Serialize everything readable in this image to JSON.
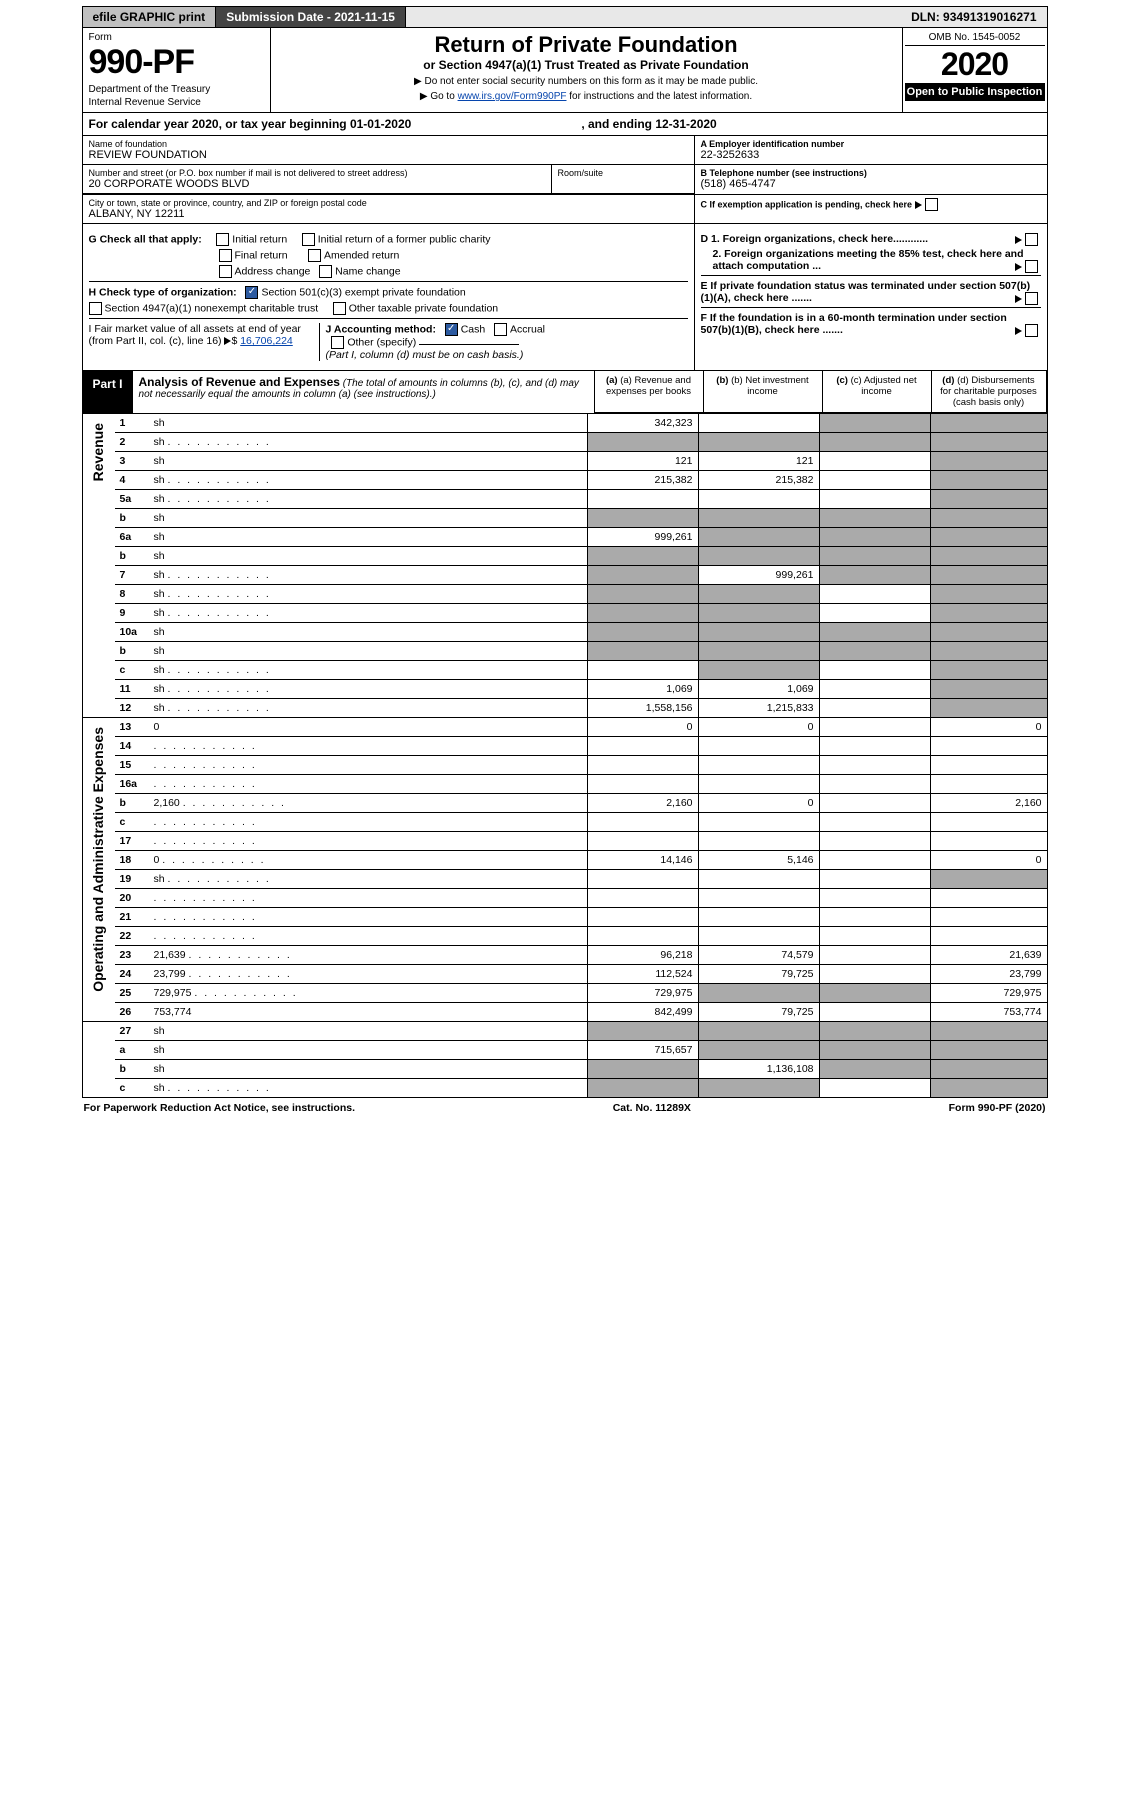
{
  "topbar": {
    "efile": "efile GRAPHIC print",
    "sub_label": "Submission Date - 2021-11-15",
    "dln": "DLN: 93491319016271"
  },
  "header": {
    "form": "Form",
    "number": "990-PF",
    "dept": "Department of the Treasury",
    "irs": "Internal Revenue Service",
    "title": "Return of Private Foundation",
    "subtitle": "or Section 4947(a)(1) Trust Treated as Private Foundation",
    "note1": "▶ Do not enter social security numbers on this form as it may be made public.",
    "note2_pre": "▶ Go to ",
    "note2_link": "www.irs.gov/Form990PF",
    "note2_post": " for instructions and the latest information.",
    "omb": "OMB No. 1545-0052",
    "year": "2020",
    "open": "Open to Public Inspection"
  },
  "calendar": {
    "line": "For calendar year 2020, or tax year beginning 01-01-2020",
    "ending": ", and ending 12-31-2020"
  },
  "info": {
    "name_lbl": "Name of foundation",
    "name": "REVIEW FOUNDATION",
    "addr_lbl": "Number and street (or P.O. box number if mail is not delivered to street address)",
    "addr": "20 CORPORATE WOODS BLVD",
    "room_lbl": "Room/suite",
    "city_lbl": "City or town, state or province, country, and ZIP or foreign postal code",
    "city": "ALBANY, NY  12211",
    "ein_lbl": "A Employer identification number",
    "ein": "22-3252633",
    "tel_lbl": "B Telephone number (see instructions)",
    "tel": "(518) 465-4747",
    "c_lbl": "C If exemption application is pending, check here"
  },
  "sectionG": {
    "title": "G Check all that apply:",
    "opts": [
      "Initial return",
      "Initial return of a former public charity",
      "Final return",
      "Amended return",
      "Address change",
      "Name change"
    ]
  },
  "sectionH": {
    "title": "H Check type of organization:",
    "o1": "Section 501(c)(3) exempt private foundation",
    "o2": "Section 4947(a)(1) nonexempt charitable trust",
    "o3": "Other taxable private foundation"
  },
  "sectionI": {
    "title": "I Fair market value of all assets at end of year (from Part II, col. (c), line 16)",
    "val": "16,706,224"
  },
  "sectionJ": {
    "title": "J Accounting method:",
    "o1": "Cash",
    "o2": "Accrual",
    "o3": "Other (specify)",
    "note": "(Part I, column (d) must be on cash basis.)"
  },
  "sectionD": {
    "d1": "D 1. Foreign organizations, check here............",
    "d2": "2. Foreign organizations meeting the 85% test, check here and attach computation ..."
  },
  "sectionE": {
    "txt": "E  If private foundation status was terminated under section 507(b)(1)(A), check here ......."
  },
  "sectionF": {
    "txt": "F  If the foundation is in a 60-month termination under section 507(b)(1)(B), check here ......."
  },
  "part1": {
    "label": "Part I",
    "title": "Analysis of Revenue and Expenses",
    "note": "(The total of amounts in columns (b), (c), and (d) may not necessarily equal the amounts in column (a) (see instructions).)",
    "col_a": "(a) Revenue and expenses per books",
    "col_b": "(b) Net investment income",
    "col_c": "(c) Adjusted net income",
    "col_d": "(d) Disbursements for charitable purposes (cash basis only)"
  },
  "sections": {
    "rev": "Revenue",
    "exp": "Operating and Administrative Expenses"
  },
  "rows": [
    {
      "n": "1",
      "d": "sh",
      "a": "342,323",
      "b": "",
      "c": "sh"
    },
    {
      "n": "2",
      "d": "sh",
      "a": "sh",
      "b": "sh",
      "c": "sh",
      "dots": true
    },
    {
      "n": "3",
      "d": "sh",
      "a": "121",
      "b": "121",
      "c": ""
    },
    {
      "n": "4",
      "d": "sh",
      "a": "215,382",
      "b": "215,382",
      "c": "",
      "dots": true
    },
    {
      "n": "5a",
      "d": "sh",
      "a": "",
      "b": "",
      "c": "",
      "dots": true
    },
    {
      "n": "b",
      "d": "sh",
      "a": "sh",
      "b": "sh",
      "c": "sh"
    },
    {
      "n": "6a",
      "d": "sh",
      "a": "999,261",
      "b": "sh",
      "c": "sh"
    },
    {
      "n": "b",
      "d": "sh",
      "a": "sh",
      "b": "sh",
      "c": "sh"
    },
    {
      "n": "7",
      "d": "sh",
      "a": "sh",
      "b": "999,261",
      "c": "sh",
      "dots": true
    },
    {
      "n": "8",
      "d": "sh",
      "a": "sh",
      "b": "sh",
      "c": "",
      "dots": true
    },
    {
      "n": "9",
      "d": "sh",
      "a": "sh",
      "b": "sh",
      "c": "",
      "dots": true
    },
    {
      "n": "10a",
      "d": "sh",
      "a": "sh",
      "b": "sh",
      "c": "sh"
    },
    {
      "n": "b",
      "d": "sh",
      "a": "sh",
      "b": "sh",
      "c": "sh"
    },
    {
      "n": "c",
      "d": "sh",
      "a": "",
      "b": "sh",
      "c": "",
      "dots": true
    },
    {
      "n": "11",
      "d": "sh",
      "a": "1,069",
      "b": "1,069",
      "c": "",
      "dots": true
    },
    {
      "n": "12",
      "d": "sh",
      "a": "1,558,156",
      "b": "1,215,833",
      "c": "",
      "dots": true,
      "last_rev": true
    },
    {
      "n": "13",
      "d": "0",
      "a": "0",
      "b": "0",
      "c": ""
    },
    {
      "n": "14",
      "d": "",
      "a": "",
      "b": "",
      "c": "",
      "dots": true
    },
    {
      "n": "15",
      "d": "",
      "a": "",
      "b": "",
      "c": "",
      "dots": true
    },
    {
      "n": "16a",
      "d": "",
      "a": "",
      "b": "",
      "c": "",
      "dots": true
    },
    {
      "n": "b",
      "d": "2,160",
      "a": "2,160",
      "b": "0",
      "c": "",
      "dots": true
    },
    {
      "n": "c",
      "d": "",
      "a": "",
      "b": "",
      "c": "",
      "dots": true
    },
    {
      "n": "17",
      "d": "",
      "a": "",
      "b": "",
      "c": "",
      "dots": true
    },
    {
      "n": "18",
      "d": "0",
      "a": "14,146",
      "b": "5,146",
      "c": "",
      "dots": true
    },
    {
      "n": "19",
      "d": "sh",
      "a": "",
      "b": "",
      "c": "",
      "dots": true
    },
    {
      "n": "20",
      "d": "",
      "a": "",
      "b": "",
      "c": "",
      "dots": true
    },
    {
      "n": "21",
      "d": "",
      "a": "",
      "b": "",
      "c": "",
      "dots": true
    },
    {
      "n": "22",
      "d": "",
      "a": "",
      "b": "",
      "c": "",
      "dots": true
    },
    {
      "n": "23",
      "d": "21,639",
      "a": "96,218",
      "b": "74,579",
      "c": "",
      "dots": true
    },
    {
      "n": "24",
      "d": "23,799",
      "a": "112,524",
      "b": "79,725",
      "c": "",
      "dots": true
    },
    {
      "n": "25",
      "d": "729,975",
      "a": "729,975",
      "b": "sh",
      "c": "sh",
      "dots": true
    },
    {
      "n": "26",
      "d": "753,774",
      "a": "842,499",
      "b": "79,725",
      "c": "",
      "last_exp": true
    },
    {
      "n": "27",
      "d": "sh",
      "a": "sh",
      "b": "sh",
      "c": "sh"
    },
    {
      "n": "a",
      "d": "sh",
      "a": "715,657",
      "b": "sh",
      "c": "sh"
    },
    {
      "n": "b",
      "d": "sh",
      "a": "sh",
      "b": "1,136,108",
      "c": "sh"
    },
    {
      "n": "c",
      "d": "sh",
      "a": "sh",
      "b": "sh",
      "c": "",
      "dots": true
    }
  ],
  "footer": {
    "l": "For Paperwork Reduction Act Notice, see instructions.",
    "c": "Cat. No. 11289X",
    "r": "Form 990-PF (2020)"
  }
}
